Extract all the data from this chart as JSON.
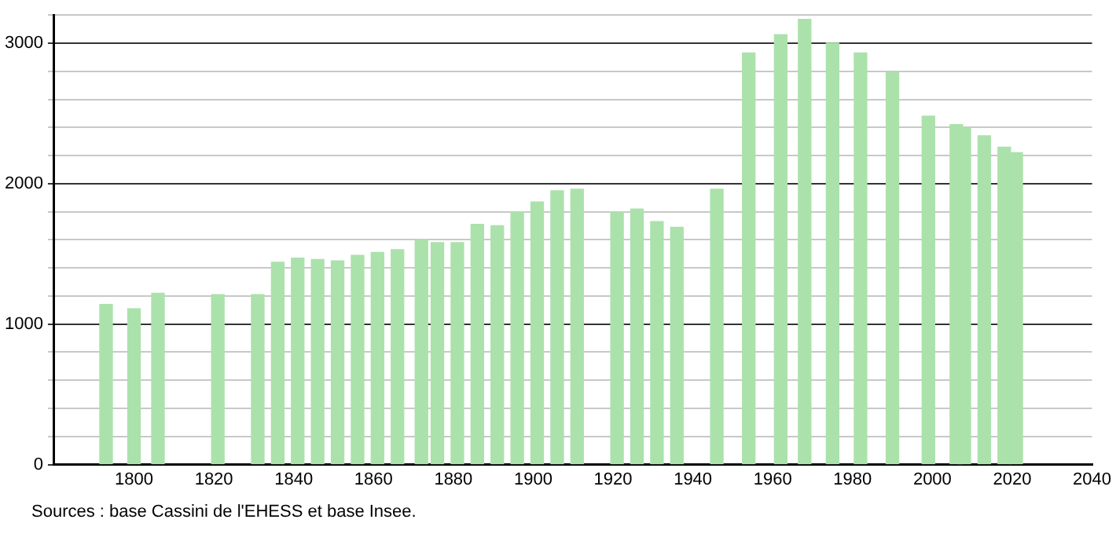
{
  "chart_data": {
    "type": "bar",
    "x": [
      1793,
      1800,
      1806,
      1821,
      1831,
      1836,
      1841,
      1846,
      1851,
      1856,
      1861,
      1866,
      1872,
      1876,
      1881,
      1886,
      1891,
      1896,
      1901,
      1906,
      1911,
      1921,
      1926,
      1931,
      1936,
      1946,
      1954,
      1962,
      1968,
      1975,
      1982,
      1990,
      1999,
      2006,
      2008,
      2013,
      2018,
      2021
    ],
    "values": [
      1140,
      1110,
      1220,
      1210,
      1210,
      1440,
      1470,
      1460,
      1450,
      1490,
      1510,
      1530,
      1600,
      1580,
      1580,
      1710,
      1700,
      1800,
      1870,
      1950,
      1960,
      1800,
      1820,
      1730,
      1690,
      1960,
      2930,
      3060,
      3170,
      3000,
      2930,
      2790,
      2480,
      2420,
      2400,
      2340,
      2260,
      2220
    ],
    "color": "#abe2ab",
    "xlim": [
      1780,
      2040
    ],
    "xticks": [
      1800,
      1820,
      1840,
      1860,
      1880,
      1900,
      1920,
      1940,
      1960,
      1980,
      2000,
      2020,
      2040
    ],
    "ylim": [
      0,
      3200
    ],
    "yticks": [
      0,
      {
        "value": 200,
        "label": null
      },
      {
        "value": 400,
        "label": null
      },
      {
        "value": 600,
        "label": null
      },
      {
        "value": 800,
        "label": null
      },
      1000,
      {
        "value": 1200,
        "label": null
      },
      {
        "value": 1400,
        "label": null
      },
      {
        "value": 1600,
        "label": null
      },
      {
        "value": 1800,
        "label": null
      },
      2000,
      {
        "value": 2200,
        "label": null
      },
      {
        "value": 2400,
        "label": null
      },
      {
        "value": 2600,
        "label": null
      },
      {
        "value": 2800,
        "label": null
      },
      3000,
      {
        "value": 3200,
        "label": null
      }
    ],
    "grid": "y",
    "legend": false,
    "annotations": [
      "Sources : base Cassini de l'EHESS et base Insee."
    ]
  }
}
